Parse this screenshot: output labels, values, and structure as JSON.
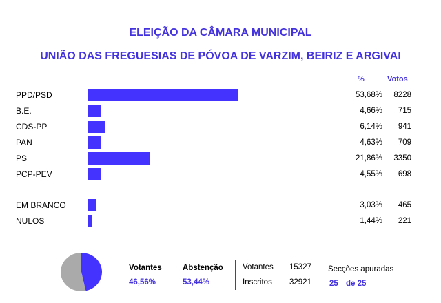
{
  "chart_data": {
    "type": "bar",
    "orientation": "horizontal",
    "title": "ELEIÇÃO DA CÂMARA MUNICIPAL",
    "subtitle": "UNIÃO DAS FREGUESIAS DE PÓVOA DE VARZIM, BEIRIZ E ARGIVAI",
    "column_headers": {
      "pct": "%",
      "votes": "Votos"
    },
    "bar_color": "#4433ff",
    "rows": [
      {
        "label": "PPD/PSD",
        "pct": 53.68,
        "pct_text": "53,68%",
        "votes": "8228"
      },
      {
        "label": "B.E.",
        "pct": 4.66,
        "pct_text": "4,66%",
        "votes": "715"
      },
      {
        "label": "CDS-PP",
        "pct": 6.14,
        "pct_text": "6,14%",
        "votes": "941"
      },
      {
        "label": "PAN",
        "pct": 4.63,
        "pct_text": "4,63%",
        "votes": "709"
      },
      {
        "label": "PS",
        "pct": 21.86,
        "pct_text": "21,86%",
        "votes": "3350"
      },
      {
        "label": "PCP-PEV",
        "pct": 4.55,
        "pct_text": "4,55%",
        "votes": "698"
      },
      {
        "label": "EM BRANCO",
        "pct": 3.03,
        "pct_text": "3,03%",
        "votes": "465"
      },
      {
        "label": "NULOS",
        "pct": 1.44,
        "pct_text": "1,44%",
        "votes": "221"
      }
    ],
    "turnout_pie": {
      "type": "pie",
      "slices": [
        {
          "label": "Votantes",
          "value": 46.56,
          "color": "#4433ff"
        },
        {
          "label": "Abstenção",
          "value": 53.44,
          "color": "#aaaaaa"
        }
      ]
    }
  },
  "footer": {
    "votantes_label": "Votantes",
    "votantes_pct": "46,56%",
    "abstencao_label": "Abstenção",
    "abstencao_pct": "53,44%",
    "votantes_count_label": "Votantes",
    "votantes_count": "15327",
    "inscritos_label": "Inscritos",
    "inscritos_count": "32921",
    "seccoes_label": "Secções apuradas",
    "seccoes_done": "25",
    "seccoes_total": "de 25"
  }
}
